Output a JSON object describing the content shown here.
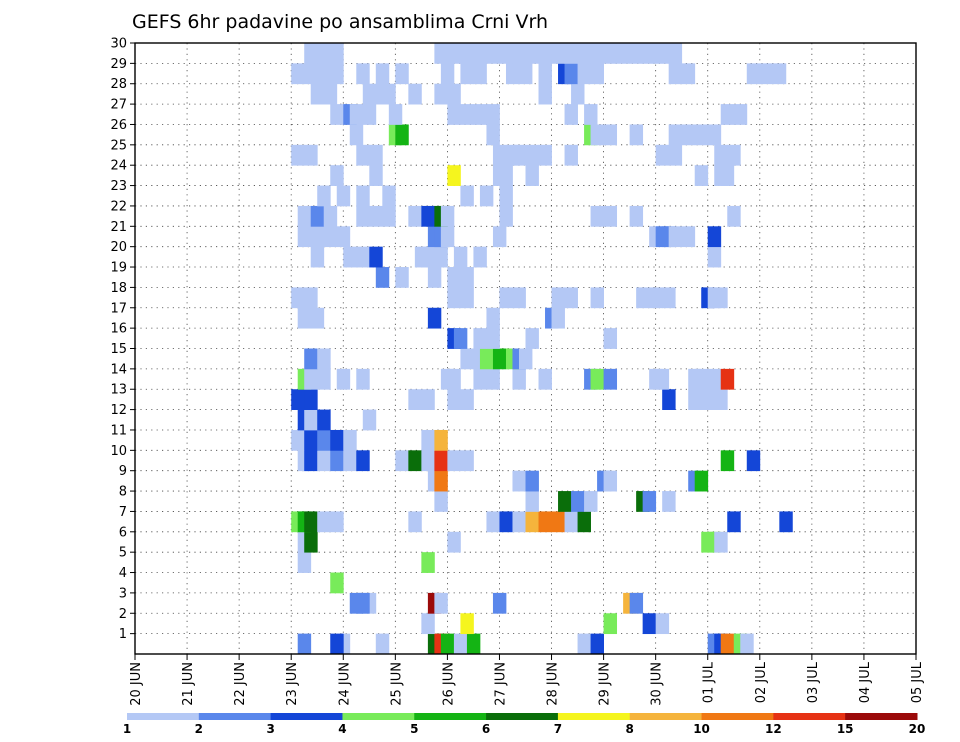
{
  "chart_data": {
    "type": "heatmap",
    "title": "GEFS 6hr padavine po ansamblima Crni Vrh",
    "xlabel": "",
    "ylabel": "",
    "x_tick_labels": [
      "20 JUN",
      "21 JUN",
      "22 JUN",
      "23 JUN",
      "24 JUN",
      "25 JUN",
      "26 JUN",
      "27 JUN",
      "28 JUN",
      "29 JUN",
      "30 JUN",
      "01 JUL",
      "02 JUL",
      "03 JUL",
      "04 JUL",
      "05 JUL"
    ],
    "x_units": "6-hour steps from 20 JUN 00Z",
    "xlim": [
      0,
      60
    ],
    "y_tick_labels": [
      "1",
      "2",
      "3",
      "4",
      "5",
      "6",
      "7",
      "8",
      "9",
      "10",
      "11",
      "12",
      "13",
      "14",
      "15",
      "16",
      "17",
      "18",
      "19",
      "20",
      "21",
      "22",
      "23",
      "24",
      "25",
      "26",
      "27",
      "28",
      "29",
      "30"
    ],
    "ylim": [
      0,
      30
    ],
    "grid": true,
    "legend": "colorbar-bottom",
    "colorbar": {
      "boundaries": [
        "1",
        "2",
        "3",
        "4",
        "5",
        "6",
        "7",
        "8",
        "10",
        "12",
        "15",
        "20"
      ],
      "colors": [
        "#b4c8f5",
        "#5a87eb",
        "#1446d7",
        "#78eb5a",
        "#14b414",
        "#0a6e0a",
        "#f5f51e",
        "#f5b43c",
        "#f07814",
        "#e63214",
        "#9b0a0a"
      ]
    },
    "cells": [
      [
        12.5,
        0,
        1
      ],
      [
        15.5,
        0,
        0
      ],
      [
        15.0,
        0,
        2
      ],
      [
        18.5,
        0,
        0
      ],
      [
        22.5,
        0,
        5
      ],
      [
        23.0,
        0,
        9
      ],
      [
        23.5,
        0,
        4
      ],
      [
        24.5,
        0,
        0
      ],
      [
        25.5,
        0,
        4
      ],
      [
        34.0,
        0,
        0
      ],
      [
        35.0,
        0,
        2
      ],
      [
        44.0,
        0,
        1
      ],
      [
        44.5,
        0,
        2
      ],
      [
        45.0,
        0,
        8
      ],
      [
        46.0,
        0,
        3
      ],
      [
        46.5,
        0,
        0
      ],
      [
        25.0,
        1,
        6
      ],
      [
        36.0,
        1,
        3
      ],
      [
        22.0,
        1,
        0
      ],
      [
        39.0,
        1,
        2
      ],
      [
        40.0,
        1,
        0
      ],
      [
        22.5,
        2,
        10
      ],
      [
        23.0,
        2,
        0
      ],
      [
        16.5,
        2,
        1
      ],
      [
        17.5,
        2,
        0
      ],
      [
        17.0,
        2,
        1
      ],
      [
        27.5,
        2,
        1
      ],
      [
        37.5,
        2,
        7
      ],
      [
        38.0,
        2,
        1
      ],
      [
        15.0,
        3,
        3
      ],
      [
        12.5,
        4,
        0
      ],
      [
        22.0,
        4,
        3
      ],
      [
        12.5,
        5,
        0
      ],
      [
        13.0,
        5,
        5
      ],
      [
        24.0,
        5,
        0
      ],
      [
        43.5,
        5,
        3
      ],
      [
        44.0,
        5,
        3
      ],
      [
        44.5,
        5,
        0
      ],
      [
        12.0,
        6,
        3
      ],
      [
        12.5,
        6,
        4
      ],
      [
        13.0,
        6,
        5
      ],
      [
        14.0,
        6,
        0
      ],
      [
        15.0,
        6,
        0
      ],
      [
        21.0,
        6,
        0
      ],
      [
        27.0,
        6,
        0
      ],
      [
        28.0,
        6,
        2
      ],
      [
        29.0,
        6,
        0
      ],
      [
        30.0,
        6,
        7
      ],
      [
        31.0,
        6,
        8
      ],
      [
        32.0,
        6,
        8
      ],
      [
        33.0,
        6,
        0
      ],
      [
        34.0,
        6,
        5
      ],
      [
        45.5,
        6,
        2
      ],
      [
        49.5,
        6,
        2
      ],
      [
        23.0,
        7,
        0
      ],
      [
        30.0,
        7,
        0
      ],
      [
        32.5,
        7,
        5
      ],
      [
        33.5,
        7,
        1
      ],
      [
        34.5,
        7,
        0
      ],
      [
        38.5,
        7,
        5
      ],
      [
        39.0,
        7,
        1
      ],
      [
        40.5,
        7,
        0
      ],
      [
        22.5,
        8,
        0
      ],
      [
        23.0,
        8,
        8
      ],
      [
        29.0,
        8,
        0
      ],
      [
        30.0,
        8,
        1
      ],
      [
        35.5,
        8,
        1
      ],
      [
        36.0,
        8,
        0
      ],
      [
        42.5,
        8,
        1
      ],
      [
        43.0,
        8,
        4
      ],
      [
        12.5,
        9,
        0
      ],
      [
        13.0,
        9,
        2
      ],
      [
        14.0,
        9,
        0
      ],
      [
        15.0,
        9,
        1
      ],
      [
        16.0,
        9,
        0
      ],
      [
        17.0,
        9,
        2
      ],
      [
        20.0,
        9,
        0
      ],
      [
        21.0,
        9,
        5
      ],
      [
        22.0,
        9,
        0
      ],
      [
        23.0,
        9,
        9
      ],
      [
        24.0,
        9,
        0
      ],
      [
        25.0,
        9,
        0
      ],
      [
        45.0,
        9,
        4
      ],
      [
        47.0,
        9,
        2
      ],
      [
        12.0,
        10,
        0
      ],
      [
        13.0,
        10,
        2
      ],
      [
        14.0,
        10,
        1
      ],
      [
        15.0,
        10,
        2
      ],
      [
        16.0,
        10,
        0
      ],
      [
        22.0,
        10,
        0
      ],
      [
        23.0,
        10,
        7
      ],
      [
        12.5,
        11,
        2
      ],
      [
        13.0,
        11,
        0
      ],
      [
        14.0,
        11,
        2
      ],
      [
        17.5,
        11,
        0
      ],
      [
        12.0,
        12,
        2
      ],
      [
        13.0,
        12,
        2
      ],
      [
        21.0,
        12,
        0
      ],
      [
        22.0,
        12,
        0
      ],
      [
        24.0,
        12,
        0
      ],
      [
        25.0,
        12,
        0
      ],
      [
        40.5,
        12,
        2
      ],
      [
        42.5,
        12,
        0
      ],
      [
        43.5,
        12,
        0
      ],
      [
        44.0,
        12,
        0
      ],
      [
        44.5,
        12,
        0
      ],
      [
        12.5,
        13,
        3
      ],
      [
        13.0,
        13,
        0
      ],
      [
        14.0,
        13,
        0
      ],
      [
        15.5,
        13,
        0
      ],
      [
        17.0,
        13,
        0
      ],
      [
        23.5,
        13,
        0
      ],
      [
        24.0,
        13,
        0
      ],
      [
        26.0,
        13,
        0
      ],
      [
        27.0,
        13,
        0
      ],
      [
        29.0,
        13,
        0
      ],
      [
        31.0,
        13,
        0
      ],
      [
        34.5,
        13,
        1
      ],
      [
        35.0,
        13,
        3
      ],
      [
        36.0,
        13,
        1
      ],
      [
        39.5,
        13,
        0
      ],
      [
        40.0,
        13,
        0
      ],
      [
        42.5,
        13,
        0
      ],
      [
        43.0,
        13,
        0
      ],
      [
        44.0,
        13,
        0
      ],
      [
        45.0,
        13,
        9
      ],
      [
        13.0,
        14,
        1
      ],
      [
        14.0,
        14,
        0
      ],
      [
        25.0,
        14,
        0
      ],
      [
        26.0,
        14,
        0
      ],
      [
        26.5,
        14,
        3
      ],
      [
        27.5,
        14,
        4
      ],
      [
        28.5,
        14,
        3
      ],
      [
        29.0,
        14,
        1
      ],
      [
        29.5,
        14,
        0
      ],
      [
        24.0,
        15,
        2
      ],
      [
        24.5,
        15,
        1
      ],
      [
        26.0,
        15,
        0
      ],
      [
        27.0,
        15,
        0
      ],
      [
        30.0,
        15,
        0
      ],
      [
        36.0,
        15,
        0
      ],
      [
        12.5,
        16,
        0
      ],
      [
        13.5,
        16,
        0
      ],
      [
        22.5,
        16,
        2
      ],
      [
        27.0,
        16,
        0
      ],
      [
        31.5,
        16,
        1
      ],
      [
        32.0,
        16,
        0
      ],
      [
        12.0,
        17,
        0
      ],
      [
        13.0,
        17,
        0
      ],
      [
        24.0,
        17,
        0
      ],
      [
        25.0,
        17,
        0
      ],
      [
        28.0,
        17,
        0
      ],
      [
        29.0,
        17,
        0
      ],
      [
        32.0,
        17,
        0
      ],
      [
        33.0,
        17,
        0
      ],
      [
        35.0,
        17,
        0
      ],
      [
        38.5,
        17,
        0
      ],
      [
        39.5,
        17,
        0
      ],
      [
        40.5,
        17,
        0
      ],
      [
        43.5,
        17,
        2
      ],
      [
        44.0,
        17,
        0
      ],
      [
        44.5,
        17,
        0
      ],
      [
        18.5,
        18,
        1
      ],
      [
        20.0,
        18,
        0
      ],
      [
        22.5,
        18,
        0
      ],
      [
        24.0,
        18,
        0
      ],
      [
        25.0,
        18,
        0
      ],
      [
        13.5,
        19,
        0
      ],
      [
        16.0,
        19,
        0
      ],
      [
        17.0,
        19,
        0
      ],
      [
        18.0,
        19,
        2
      ],
      [
        21.5,
        19,
        0
      ],
      [
        22.0,
        19,
        0
      ],
      [
        23.0,
        19,
        0
      ],
      [
        24.5,
        19,
        0
      ],
      [
        26.0,
        19,
        0
      ],
      [
        44.0,
        19,
        0
      ],
      [
        12.5,
        20,
        0
      ],
      [
        13.5,
        20,
        0
      ],
      [
        14.5,
        20,
        0
      ],
      [
        15.5,
        20,
        0
      ],
      [
        22.5,
        20,
        1
      ],
      [
        23.0,
        20,
        1
      ],
      [
        23.5,
        20,
        0
      ],
      [
        27.5,
        20,
        0
      ],
      [
        39.5,
        20,
        0
      ],
      [
        40.0,
        20,
        1
      ],
      [
        40.5,
        20,
        1
      ],
      [
        41.0,
        20,
        0
      ],
      [
        42.0,
        20,
        0
      ],
      [
        44.0,
        20,
        2
      ],
      [
        12.5,
        21,
        0
      ],
      [
        13.5,
        21,
        1
      ],
      [
        14.5,
        21,
        0
      ],
      [
        17.0,
        21,
        0
      ],
      [
        18.0,
        21,
        0
      ],
      [
        19.0,
        21,
        0
      ],
      [
        21.0,
        21,
        0
      ],
      [
        22.0,
        21,
        2
      ],
      [
        23.0,
        21,
        5
      ],
      [
        23.5,
        21,
        0
      ],
      [
        28.0,
        21,
        0
      ],
      [
        35.0,
        21,
        0
      ],
      [
        36.0,
        21,
        0
      ],
      [
        38.0,
        21,
        0
      ],
      [
        45.5,
        21,
        0
      ],
      [
        14.0,
        22,
        0
      ],
      [
        15.5,
        22,
        0
      ],
      [
        17.0,
        22,
        0
      ],
      [
        19.0,
        22,
        0
      ],
      [
        25.0,
        22,
        0
      ],
      [
        26.5,
        22,
        0
      ],
      [
        28.0,
        22,
        0
      ],
      [
        15.0,
        23,
        0
      ],
      [
        18.0,
        23,
        0
      ],
      [
        24.0,
        23,
        6
      ],
      [
        27.5,
        23,
        0
      ],
      [
        28.0,
        23,
        0
      ],
      [
        30.0,
        23,
        0
      ],
      [
        43.0,
        23,
        0
      ],
      [
        44.5,
        23,
        0
      ],
      [
        45.0,
        23,
        0
      ],
      [
        12.0,
        24,
        0
      ],
      [
        13.0,
        24,
        0
      ],
      [
        17.0,
        24,
        0
      ],
      [
        18.0,
        24,
        0
      ],
      [
        27.5,
        24,
        0
      ],
      [
        28.5,
        24,
        0
      ],
      [
        29.0,
        24,
        0
      ],
      [
        30.0,
        24,
        0
      ],
      [
        31.0,
        24,
        0
      ],
      [
        33.0,
        24,
        0
      ],
      [
        40.0,
        24,
        0
      ],
      [
        41.0,
        24,
        0
      ],
      [
        44.5,
        24,
        0
      ],
      [
        45.5,
        24,
        0
      ],
      [
        16.5,
        25,
        0
      ],
      [
        19.5,
        25,
        3
      ],
      [
        20.0,
        25,
        4
      ],
      [
        27.0,
        25,
        0
      ],
      [
        34.5,
        25,
        3
      ],
      [
        35.0,
        25,
        0
      ],
      [
        36.0,
        25,
        0
      ],
      [
        38.0,
        25,
        0
      ],
      [
        41.0,
        25,
        0
      ],
      [
        42.0,
        25,
        0
      ],
      [
        43.0,
        25,
        0
      ],
      [
        44.0,
        25,
        0
      ],
      [
        15.0,
        26,
        0
      ],
      [
        16.0,
        26,
        1
      ],
      [
        16.5,
        26,
        0
      ],
      [
        17.5,
        26,
        0
      ],
      [
        19.5,
        26,
        0
      ],
      [
        24.0,
        26,
        0
      ],
      [
        25.0,
        26,
        0
      ],
      [
        26.0,
        26,
        0
      ],
      [
        27.0,
        26,
        0
      ],
      [
        33.0,
        26,
        0
      ],
      [
        34.5,
        26,
        0
      ],
      [
        45.0,
        26,
        0
      ],
      [
        46.0,
        26,
        0
      ],
      [
        13.5,
        27,
        0
      ],
      [
        14.5,
        27,
        0
      ],
      [
        17.5,
        27,
        0
      ],
      [
        18.5,
        27,
        0
      ],
      [
        19.0,
        27,
        0
      ],
      [
        21.0,
        27,
        0
      ],
      [
        23.0,
        27,
        0
      ],
      [
        24.0,
        27,
        0
      ],
      [
        31.0,
        27,
        0
      ],
      [
        33.5,
        27,
        0
      ],
      [
        12.0,
        28,
        0
      ],
      [
        13.0,
        28,
        0
      ],
      [
        14.0,
        28,
        0
      ],
      [
        15.0,
        28,
        0
      ],
      [
        17.0,
        28,
        0
      ],
      [
        18.5,
        28,
        0
      ],
      [
        20.0,
        28,
        0
      ],
      [
        23.5,
        28,
        0
      ],
      [
        25.0,
        28,
        0
      ],
      [
        26.0,
        28,
        0
      ],
      [
        28.5,
        28,
        0
      ],
      [
        29.5,
        28,
        0
      ],
      [
        31.0,
        28,
        0
      ],
      [
        32.5,
        28,
        2
      ],
      [
        33.0,
        28,
        1
      ],
      [
        34.0,
        28,
        0
      ],
      [
        35.0,
        28,
        0
      ],
      [
        41.0,
        28,
        0
      ],
      [
        42.0,
        28,
        0
      ],
      [
        47.0,
        28,
        0
      ],
      [
        48.0,
        28,
        0
      ],
      [
        49.0,
        28,
        0
      ],
      [
        13.0,
        29,
        0
      ],
      [
        14.0,
        29,
        0
      ],
      [
        15.0,
        29,
        0
      ],
      [
        23.0,
        29,
        0
      ],
      [
        24.0,
        29,
        0
      ],
      [
        25.0,
        29,
        0
      ],
      [
        26.0,
        29,
        0
      ],
      [
        27.0,
        29,
        0
      ],
      [
        28.0,
        29,
        0
      ],
      [
        29.0,
        29,
        0
      ],
      [
        30.0,
        29,
        0
      ],
      [
        31.0,
        29,
        0
      ],
      [
        32.0,
        29,
        0
      ],
      [
        33.0,
        29,
        0
      ],
      [
        34.0,
        29,
        0
      ],
      [
        35.0,
        29,
        0
      ],
      [
        36.0,
        29,
        0
      ],
      [
        37.0,
        29,
        0
      ],
      [
        38.0,
        29,
        0
      ],
      [
        39.0,
        29,
        0
      ],
      [
        40.0,
        29,
        0
      ],
      [
        41.0,
        29,
        0
      ]
    ]
  }
}
